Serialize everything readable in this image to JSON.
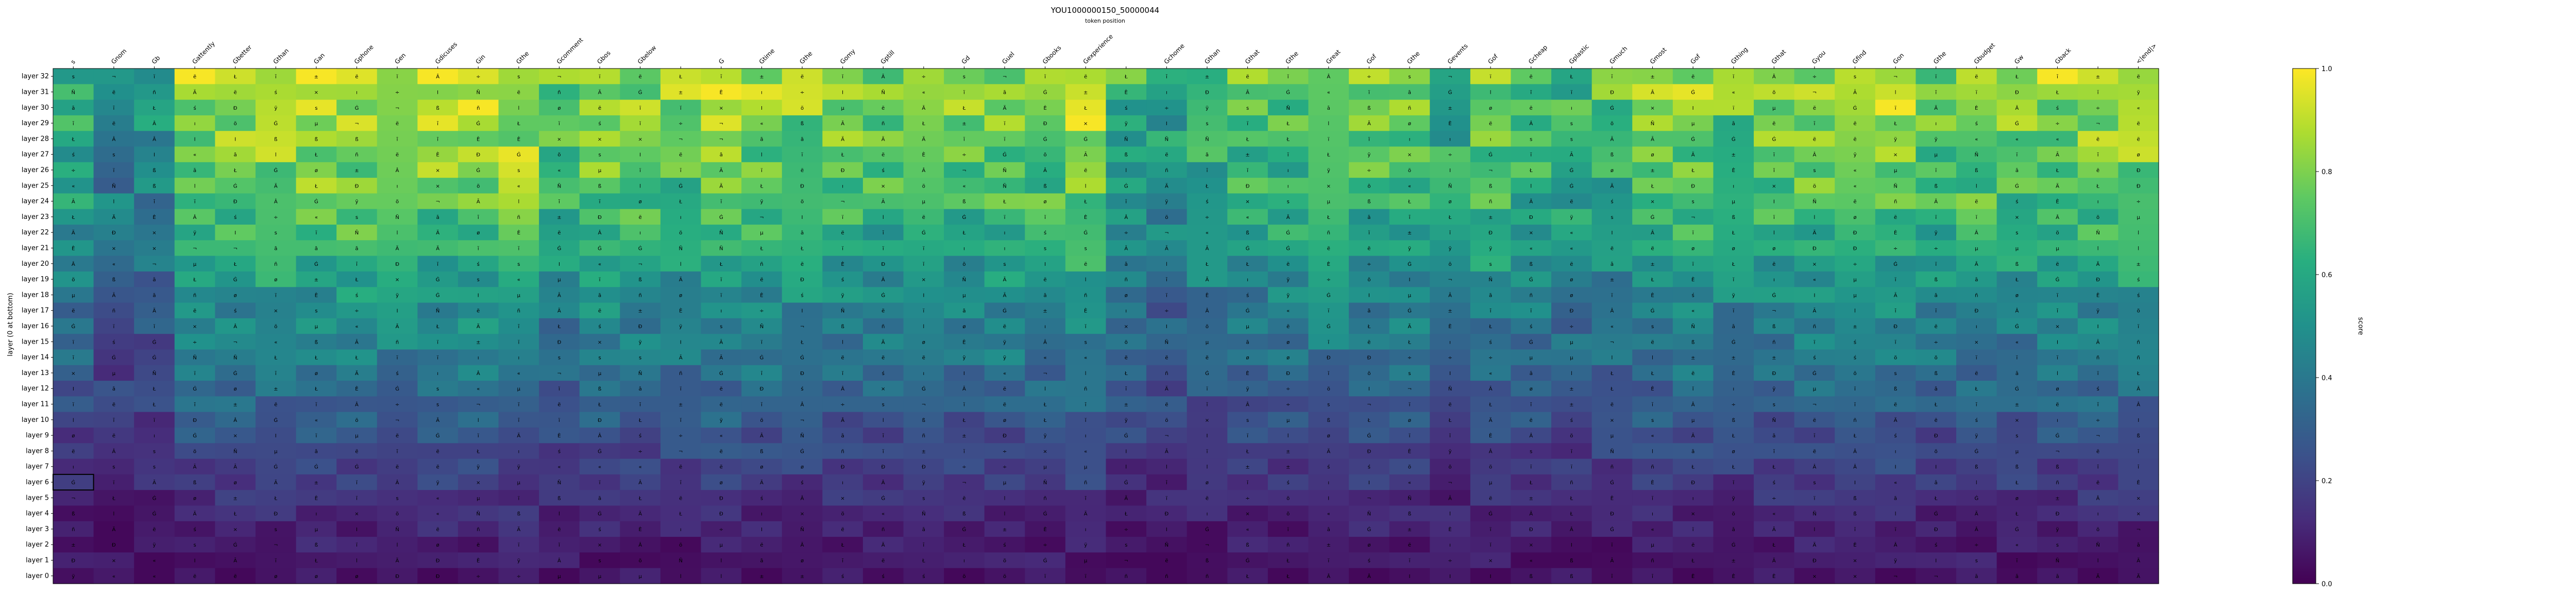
{
  "chart_data": {
    "type": "heatmap",
    "title": "YOU1000000150_50000044",
    "subtitle": "token position",
    "ylabel": "layer (0 at bottom)",
    "colorbar_label": "score",
    "colormap": "viridis",
    "vmin": 0.0,
    "vmax": 1.0,
    "colorbar_ticks": [
      "0.0",
      "0.2",
      "0.4",
      "0.6",
      "0.8",
      "1.0"
    ],
    "layers": [
      "layer 32",
      "layer 31",
      "layer 30",
      "layer 29",
      "layer 28",
      "layer 27",
      "layer 26",
      "layer 25",
      "layer 24",
      "layer 23",
      "layer 22",
      "layer 21",
      "layer 20",
      "layer 19",
      "layer 18",
      "layer 17",
      "layer 16",
      "layer 15",
      "layer 14",
      "layer 13",
      "layer 12",
      "layer 11",
      "layer 10",
      "layer 9",
      "layer 8",
      "layer 7",
      "layer 6",
      "layer 5",
      "layer 4",
      "layer 3",
      "layer 2",
      "layer 1",
      "layer 0"
    ],
    "tokens": [
      "s",
      "Gnom",
      "Gb",
      "Gattently",
      "Gbetter",
      "Gthan",
      "Gan",
      "Gphone",
      "Gen",
      "Gdicuses",
      "Gin",
      "Gthe",
      "Gcomment",
      "Gbos",
      "Gbelow",
      "",
      "G",
      "Gtime",
      "Gthe",
      "Gomy",
      "Gptill",
      "",
      "Gd",
      "Guel",
      "Gbooks",
      "Gexperience",
      "",
      "Gchome",
      "Gthan",
      "Gthat",
      "Gthe",
      "Great",
      "Gof",
      "Gthe",
      "Gevents",
      "Gof",
      "Gcheap",
      "Gplastic",
      "Gmuch",
      "Gmost",
      "Gof",
      "Gthing",
      "Gthat",
      "Gyou",
      "Gfind",
      "Gon",
      "Gthe",
      "Gbudget",
      "Gw",
      "Gback",
      "",
      "<|end|>"
    ],
    "highlighted_cell": {
      "layer": "layer 6",
      "token_index": 0
    },
    "annotation_note": "each cell shows the layer's top decoded token glyph",
    "row_layer_scale": [
      0.97,
      0.95,
      0.93,
      0.9,
      0.88,
      0.86,
      0.84,
      0.82,
      0.8,
      0.76,
      0.72,
      0.68,
      0.64,
      0.6,
      0.56,
      0.52,
      0.5,
      0.48,
      0.46,
      0.42,
      0.38,
      0.35,
      0.32,
      0.28,
      0.25,
      0.22,
      0.2,
      0.16,
      0.13,
      0.11,
      0.09,
      0.08,
      0.06
    ],
    "col_strength": [
      0.7,
      0.5,
      0.55,
      0.92,
      0.92,
      0.95,
      0.95,
      0.96,
      0.93,
      0.94,
      0.97,
      0.98,
      0.8,
      0.92,
      0.88,
      0.86,
      0.94,
      0.9,
      0.88,
      0.86,
      0.84,
      0.82,
      0.84,
      0.88,
      0.86,
      0.96,
      0.7,
      0.62,
      0.72,
      0.78,
      0.8,
      0.86,
      0.82,
      0.84,
      0.7,
      0.84,
      0.78,
      0.72,
      0.76,
      0.86,
      0.9,
      0.82,
      0.86,
      0.9,
      0.86,
      0.92,
      0.84,
      0.88,
      0.86,
      0.9,
      0.92,
      0.94
    ],
    "cell_glyphs": [
      "s",
      "I",
      "«",
      "¬",
      "μ",
      "Ñ",
      "ï",
      "Ā",
      "ß",
      "ë",
      "ā",
      "l",
      "Ł",
      "ñ",
      "Ġ",
      "ī",
      "ø",
      "Ä",
      "±",
      "ï",
      "Ł",
      "ë",
      "È",
      "Ð",
      "ĭ",
      "ś",
      "ı",
      "Â",
      "ÿ",
      "×",
      "÷",
      "Ġ",
      "ö"
    ]
  }
}
